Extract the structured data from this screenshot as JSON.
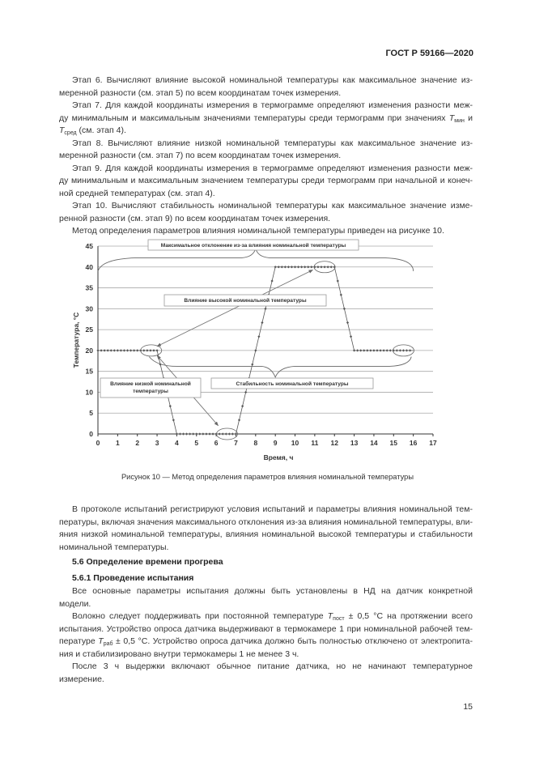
{
  "header": {
    "doc_id": "ГОСТ Р 59166—2020"
  },
  "block1": [
    [
      [
        {
          "t": "Этап 6. Вычисляют влияние высокой номинальной температуры как максимальное значение из-"
        }
      ],
      [
        {
          "t": "меренной разности (см. этап 5) по всем координатам точек измерения."
        }
      ]
    ],
    [
      [
        {
          "t": "Этап 7. Для каждой координаты измерения в термограмме определяют изменения разности меж-"
        }
      ],
      [
        {
          "t": "ду минимальным и максимальным значениями температуры среди термограмм при значениях "
        },
        {
          "sym": "T",
          "sub": "мин"
        },
        {
          "t": " и"
        }
      ],
      [
        {
          "sym": "T",
          "sub": "сред"
        },
        {
          "t": " (см. этап 4)."
        }
      ]
    ],
    [
      [
        {
          "t": "Этап 8. Вычисляют влияние низкой номинальной температуры как максимальное значение из-"
        }
      ],
      [
        {
          "t": "меренной разности (см. этап 7) по всем координатам точек измерения."
        }
      ]
    ],
    [
      [
        {
          "t": "Этап 9. Для каждой координаты измерения в термограмме определяют изменения разности меж-"
        }
      ],
      [
        {
          "t": "ду минимальным и максимальным значением температуры среди термограмм при начальной и конеч-"
        }
      ],
      [
        {
          "t": "ной средней температурах (см. этап 4)."
        }
      ]
    ],
    [
      [
        {
          "t": "Этап 10. Вычисляют стабильность номинальной температуры как максимальное значение изме-"
        }
      ],
      [
        {
          "t": "ренной разности (см. этап 9) по всем координатам точек измерения."
        }
      ]
    ],
    [
      [
        {
          "t": "Метод определения параметров влияния номинальной температуры приведен на рисунке 10."
        }
      ]
    ]
  ],
  "block2": [
    [
      [
        {
          "t": "В протоколе испытаний регистрируют условия испытаний и параметры влияния номинальной тем-"
        }
      ],
      [
        {
          "t": "пературы, включая значения максимального отклонения из-за влияния номинальной температуры, вли-"
        }
      ],
      [
        {
          "t": "яния низкой номинальной температуры, влияния номинальной высокой температуры и стабильности"
        }
      ],
      [
        {
          "t": "номинальной температуры."
        }
      ]
    ]
  ],
  "heading_5_6": "5.6 Определение времени прогрева",
  "heading_5_6_1": "5.6.1 Проведение испытания",
  "block3": [
    [
      [
        {
          "t": "Все основные параметры испытания должны быть установлены в НД на датчик конкретной"
        }
      ],
      [
        {
          "t": "модели."
        }
      ]
    ],
    [
      [
        {
          "t": "Волокно следует поддерживать при постоянной температуре "
        },
        {
          "sym": "T",
          "sub": "пост"
        },
        {
          "t": " ± 0,5 °С на протяжении всего"
        }
      ],
      [
        {
          "t": "испытания. Устройство опроса датчика выдерживают в термокамере 1 при номинальной рабочей тем-"
        }
      ],
      [
        {
          "t": "пературе "
        },
        {
          "sym": "T",
          "sub": "раб"
        },
        {
          "t": " ± 0,5 °С. Устройство опроса датчика должно быть полностью отключено от электропита-"
        }
      ],
      [
        {
          "t": "ния и стабилизировано внутри термокамеры 1 не менее 3 ч."
        }
      ]
    ],
    [
      [
        {
          "t": "После 3 ч выдержки включают обычное питание датчика, но не начинают температурное"
        }
      ],
      [
        {
          "t": "измерение."
        }
      ]
    ]
  ],
  "figure_caption": "Рисунок 10 — Метод определения параметров влияния номинальной температуры",
  "page_number": "15",
  "chart_data": {
    "type": "line",
    "xlabel": "Время, ч",
    "ylabel": "Температура, °С",
    "xlim": [
      0,
      17
    ],
    "ylim": [
      0,
      45
    ],
    "x_ticks": [
      0,
      1,
      2,
      3,
      4,
      5,
      6,
      7,
      8,
      9,
      10,
      11,
      12,
      13,
      14,
      15,
      16,
      17
    ],
    "y_ticks": [
      0,
      5,
      10,
      15,
      20,
      25,
      30,
      35,
      40,
      45
    ],
    "grid": "horizontal",
    "series": [
      {
        "points": [
          [
            0,
            20
          ],
          [
            3,
            20
          ],
          [
            4,
            0
          ],
          [
            7,
            0
          ],
          [
            9,
            40
          ],
          [
            12,
            40
          ],
          [
            13,
            20
          ],
          [
            16,
            20
          ]
        ],
        "marker": "diamond",
        "color": "#555555"
      }
    ],
    "annotations": {
      "max_deviation": "Максимальное отклонение из-за влияния номинальной температуры",
      "high_influence": "Влияние высокой номинальной температуры",
      "low_influence_1": "Влияние низкой номинальной",
      "low_influence_2": "температуры",
      "stability": "Стабильность номинальной температуры"
    }
  }
}
